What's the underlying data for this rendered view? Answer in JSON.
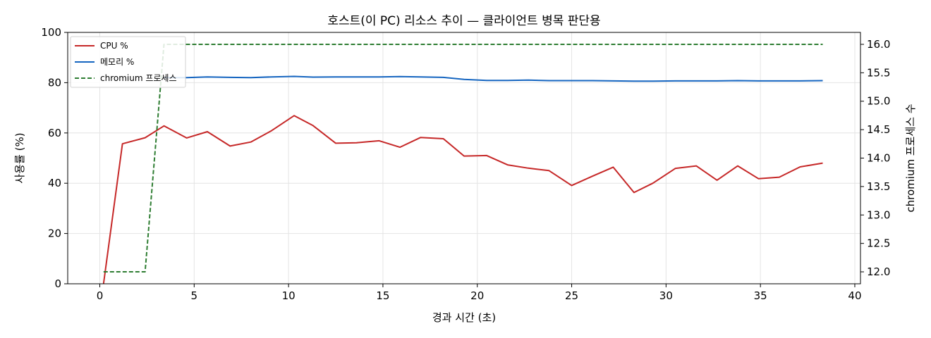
{
  "chart_data": {
    "type": "line",
    "title": "호스트(이 PC) 리소스 추이 — 클라이언트 병목 판단용",
    "xlabel": "경과 시간 (초)",
    "ylabel": "사용률 (%)",
    "y2label": "chromium 프로세스 수",
    "xlim": [
      -1.7,
      40.3
    ],
    "ylim": [
      0,
      100
    ],
    "y2lim": [
      11.79,
      16.21
    ],
    "xticks": [
      0,
      5,
      10,
      15,
      20,
      25,
      30,
      35,
      40
    ],
    "yticks": [
      0,
      20,
      40,
      60,
      80,
      100
    ],
    "y2ticks": [
      12.0,
      12.5,
      13.0,
      13.5,
      14.0,
      14.5,
      15.0,
      15.5,
      16.0
    ],
    "y2tick_labels": [
      "12.0",
      "12.5",
      "13.0",
      "13.5",
      "14.0",
      "14.5",
      "15.0",
      "15.5",
      "16.0"
    ],
    "grid": true,
    "legend_position": "top-left",
    "series": [
      {
        "name": "CPU %",
        "axis": "left",
        "color": "#c62828",
        "style": "solid",
        "x": [
          0.2,
          1.2,
          2.4,
          3.4,
          4.6,
          5.7,
          6.9,
          8.0,
          9.1,
          10.3,
          11.3,
          12.5,
          13.6,
          14.8,
          15.9,
          17.0,
          18.2,
          19.3,
          20.5,
          21.6,
          22.7,
          23.8,
          25.0,
          26.1,
          27.2,
          28.3,
          29.3,
          30.5,
          31.6,
          32.7,
          33.8,
          34.9,
          36.0,
          37.1,
          38.3
        ],
        "values": [
          0,
          55.7,
          58.1,
          62.8,
          58.0,
          60.5,
          54.8,
          56.4,
          60.9,
          66.9,
          62.9,
          55.9,
          56.1,
          56.9,
          54.3,
          58.2,
          57.7,
          50.8,
          51.0,
          47.3,
          46.0,
          45.0,
          39.1,
          42.8,
          46.4,
          36.3,
          40.0,
          45.9,
          46.9,
          41.2,
          46.9,
          41.8,
          42.4,
          46.5,
          48.0
        ]
      },
      {
        "name": "메모리 %",
        "axis": "left",
        "color": "#1565c0",
        "style": "solid",
        "x": [
          3.4,
          4.6,
          5.7,
          6.9,
          8.0,
          9.1,
          10.3,
          11.3,
          12.5,
          13.6,
          14.8,
          15.9,
          17.0,
          18.2,
          19.3,
          20.5,
          21.6,
          22.7,
          23.8,
          25.0,
          26.1,
          27.2,
          28.3,
          29.3,
          30.5,
          31.6,
          32.7,
          33.8,
          34.9,
          36.0,
          37.1,
          38.3
        ],
        "values": [
          82.0,
          82.0,
          82.3,
          82.1,
          82.0,
          82.3,
          82.5,
          82.2,
          82.3,
          82.3,
          82.3,
          82.4,
          82.3,
          82.1,
          81.3,
          80.9,
          80.9,
          81.0,
          80.8,
          80.8,
          80.8,
          80.7,
          80.6,
          80.6,
          80.7,
          80.7,
          80.7,
          80.8,
          80.7,
          80.7,
          80.7,
          80.8
        ]
      },
      {
        "name": "chromium 프로세스",
        "axis": "right",
        "color": "#2e7d32",
        "style": "dashed",
        "x": [
          0.2,
          1.2,
          2.4,
          3.4,
          4.6,
          5.7,
          6.9,
          8.0,
          9.1,
          10.3,
          11.3,
          12.5,
          13.6,
          14.8,
          15.9,
          17.0,
          18.2,
          19.3,
          20.5,
          21.6,
          22.7,
          23.8,
          25.0,
          26.1,
          27.2,
          28.3,
          29.3,
          30.5,
          31.6,
          32.7,
          33.8,
          34.9,
          36.0,
          37.1,
          38.3
        ],
        "values": [
          12,
          12,
          12,
          16,
          16,
          16,
          16,
          16,
          16,
          16,
          16,
          16,
          16,
          16,
          16,
          16,
          16,
          16,
          16,
          16,
          16,
          16,
          16,
          16,
          16,
          16,
          16,
          16,
          16,
          16,
          16,
          16,
          16,
          16,
          16
        ]
      }
    ]
  }
}
